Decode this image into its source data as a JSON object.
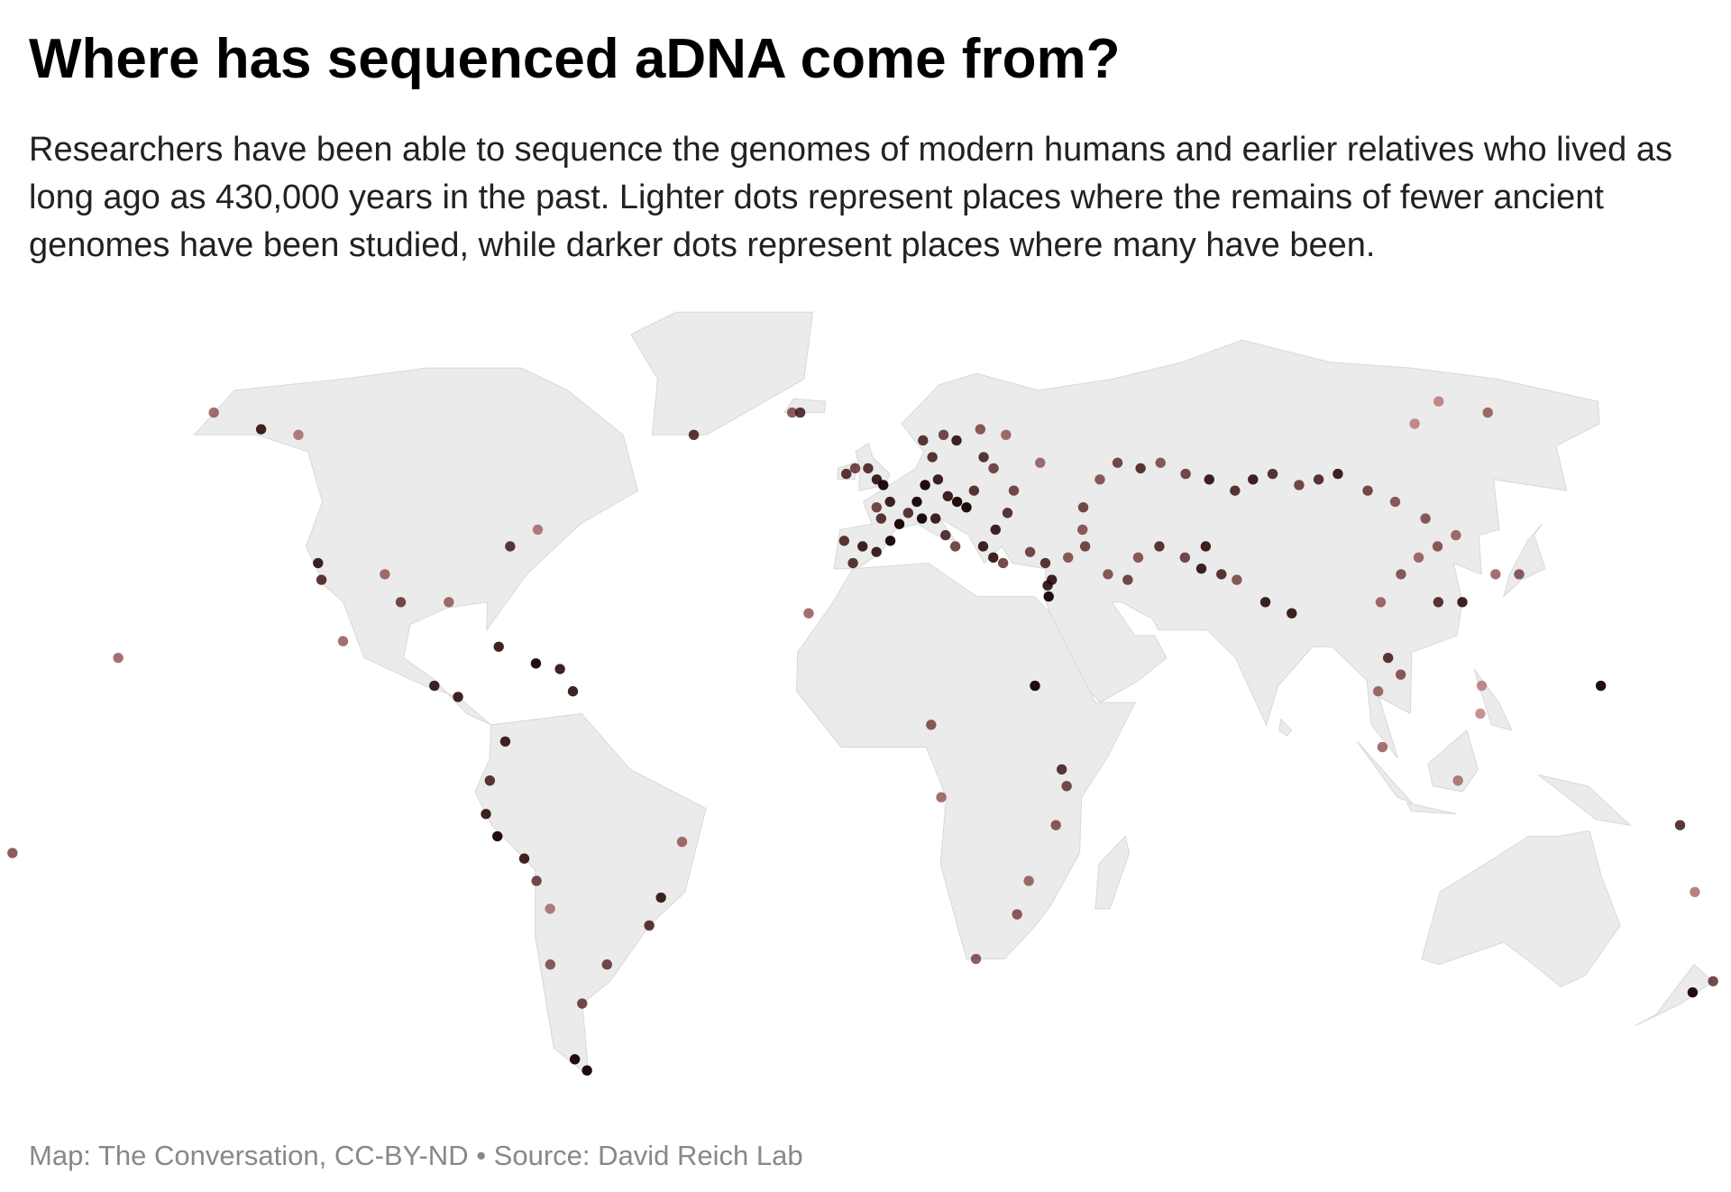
{
  "title": "Where has sequenced aDNA come from?",
  "subtitle": "Researchers have been able to sequence the genomes of modern humans and earlier relatives who lived as long ago as 430,000 years in the past. Lighter dots represent places where the remains of fewer ancient genomes have been studied, while darker dots represent places where many have been.",
  "source": "Map: The Conversation, CC-BY-ND • Source: David Reich Lab",
  "points": {
    "lon": [
      -1,
      -3,
      0.5,
      -6,
      -8,
      2,
      0,
      4,
      -1,
      6,
      -4,
      -8,
      -1,
      2,
      -6,
      10,
      13,
      8,
      15,
      17,
      19,
      21,
      12,
      14,
      16,
      9,
      10,
      15,
      18,
      24,
      12,
      24,
      26,
      30,
      28,
      25,
      22,
      24,
      26,
      30,
      37,
      32,
      35,
      35,
      35,
      36,
      40,
      44,
      44,
      45,
      50,
      55,
      60,
      65,
      70,
      75,
      80,
      85,
      90,
      95,
      100,
      105,
      110,
      115,
      120,
      60,
      65,
      70,
      72,
      68,
      75,
      80,
      85,
      55,
      52,
      48,
      110,
      115,
      120,
      125,
      130,
      135,
      121,
      116,
      104,
      103,
      105,
      100,
      100,
      115,
      120,
      121,
      145,
      150,
      140,
      130,
      31,
      36,
      37,
      35,
      30,
      28,
      20,
      12,
      10,
      -15,
      -22,
      -20,
      -150,
      -165,
      -140,
      -120,
      -118,
      -105,
      -100,
      -80,
      -75,
      -90,
      -85,
      -78,
      -70,
      -65,
      -62,
      -75,
      -78,
      -79,
      -77,
      -72,
      -70,
      -68,
      -70,
      -65,
      -70,
      -68,
      -45,
      -48,
      -58,
      -40,
      -110,
      -90,
      -155,
      -175,
      175,
      178,
      160,
      166,
      -45
    ],
    "lat": [
      52,
      54,
      51,
      54,
      53,
      48,
      45,
      44,
      47,
      46,
      40,
      41,
      39,
      41,
      37,
      51,
      52,
      48,
      49,
      48,
      47,
      50,
      45,
      42,
      40,
      45,
      59,
      60,
      59,
      61,
      56,
      56,
      54,
      50,
      46,
      43,
      40,
      38,
      37,
      60,
      55,
      39,
      37,
      33,
      31,
      34,
      38,
      40,
      43,
      47,
      52,
      55,
      54,
      55,
      53,
      52,
      50,
      52,
      53,
      51,
      52,
      53,
      50,
      48,
      45,
      40,
      38,
      40,
      35,
      36,
      34,
      30,
      28,
      38,
      34,
      35,
      35,
      38,
      40,
      42,
      35,
      35,
      30,
      30,
      30,
      20,
      17,
      14,
      4,
      -2,
      10,
      15,
      15,
      64,
      66,
      62,
      15,
      0,
      -3,
      -10,
      -20,
      -26,
      -34,
      -5,
      8,
      28,
      64,
      64,
      61,
      64,
      60,
      37,
      34,
      35,
      30,
      40,
      43,
      15,
      13,
      22,
      19,
      18,
      14,
      5,
      -2,
      -8,
      -12,
      -16,
      -20,
      -25,
      -35,
      -42,
      -52,
      -54,
      -23,
      -28,
      -35,
      -13,
      23,
      30,
      20,
      -15,
      -40,
      -38,
      -10,
      -22,
      60
    ],
    "intensity": [
      0.9,
      0.8,
      1,
      0.7,
      0.8,
      0.9,
      0.8,
      1,
      0.7,
      0.8,
      0.9,
      0.8,
      0.9,
      1,
      0.8,
      1,
      0.9,
      1,
      0.9,
      1,
      1,
      0.8,
      0.9,
      0.8,
      0.7,
      1,
      0.8,
      0.7,
      0.9,
      0.6,
      0.8,
      0.8,
      0.7,
      0.7,
      0.8,
      0.9,
      0.9,
      0.9,
      0.7,
      0.5,
      0.5,
      0.7,
      0.8,
      0.9,
      1,
      0.9,
      0.6,
      0.7,
      0.6,
      0.7,
      0.6,
      0.7,
      0.8,
      0.6,
      0.7,
      0.9,
      0.8,
      0.9,
      0.8,
      0.7,
      0.8,
      0.9,
      0.7,
      0.6,
      0.6,
      0.8,
      0.7,
      0.9,
      0.8,
      0.9,
      0.6,
      0.9,
      0.9,
      0.6,
      0.7,
      0.6,
      0.6,
      0.5,
      0.6,
      0.5,
      0.5,
      0.6,
      0.9,
      0.8,
      0.5,
      0.8,
      0.6,
      0.5,
      0.5,
      0.4,
      0.3,
      0.3,
      1,
      0.5,
      0.3,
      0.3,
      1,
      0.8,
      0.7,
      0.6,
      0.5,
      0.6,
      0.6,
      0.5,
      0.6,
      0.5,
      0.6,
      0.8,
      0.9,
      0.5,
      0.4,
      0.9,
      0.8,
      0.5,
      0.7,
      0.8,
      0.4,
      0.9,
      0.9,
      0.9,
      1,
      0.9,
      0.9,
      0.9,
      0.8,
      0.9,
      1,
      0.9,
      0.7,
      0.4,
      0.6,
      0.7,
      1,
      1,
      0.9,
      0.8,
      0.7,
      0.5,
      0.5,
      0.5,
      0.5,
      0.6,
      1,
      0.7,
      0.8,
      0.4,
      0.8
    ]
  }
}
